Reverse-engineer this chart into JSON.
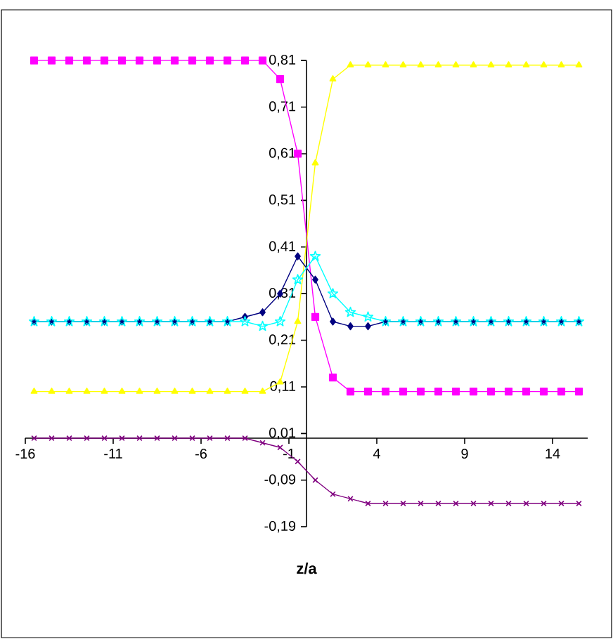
{
  "chart_data": {
    "type": "line",
    "xlabel": "z/a",
    "x": [
      -15.5,
      -14.5,
      -13.5,
      -12.5,
      -11.5,
      -10.5,
      -9.5,
      -8.5,
      -7.5,
      -6.5,
      -5.5,
      -4.5,
      -3.5,
      -2.5,
      -1.5,
      -0.5,
      0.5,
      1.5,
      2.5,
      3.5,
      4.5,
      5.5,
      6.5,
      7.5,
      8.5,
      9.5,
      10.5,
      11.5,
      12.5,
      13.5,
      14.5,
      15.5
    ],
    "series": [
      {
        "color": "#ff00ff",
        "marker": "square",
        "values": [
          0.81,
          0.81,
          0.81,
          0.81,
          0.81,
          0.81,
          0.81,
          0.81,
          0.81,
          0.81,
          0.81,
          0.81,
          0.81,
          0.81,
          0.77,
          0.61,
          0.26,
          0.13,
          0.1,
          0.1,
          0.1,
          0.1,
          0.1,
          0.1,
          0.1,
          0.1,
          0.1,
          0.1,
          0.1,
          0.1,
          0.1,
          0.1
        ]
      },
      {
        "color": "#ffff00",
        "marker": "triangle",
        "values": [
          0.1,
          0.1,
          0.1,
          0.1,
          0.1,
          0.1,
          0.1,
          0.1,
          0.1,
          0.1,
          0.1,
          0.1,
          0.1,
          0.1,
          0.12,
          0.25,
          0.59,
          0.77,
          0.8,
          0.8,
          0.8,
          0.8,
          0.8,
          0.8,
          0.8,
          0.8,
          0.8,
          0.8,
          0.8,
          0.8,
          0.8,
          0.8
        ]
      },
      {
        "color": "#000080",
        "marker": "diamond",
        "values": [
          0.25,
          0.25,
          0.25,
          0.25,
          0.25,
          0.25,
          0.25,
          0.25,
          0.25,
          0.25,
          0.25,
          0.25,
          0.26,
          0.27,
          0.31,
          0.39,
          0.34,
          0.25,
          0.24,
          0.24,
          0.25,
          0.25,
          0.25,
          0.25,
          0.25,
          0.25,
          0.25,
          0.25,
          0.25,
          0.25,
          0.25,
          0.25
        ]
      },
      {
        "color": "#00ffff",
        "marker": "star",
        "values": [
          0.25,
          0.25,
          0.25,
          0.25,
          0.25,
          0.25,
          0.25,
          0.25,
          0.25,
          0.25,
          0.25,
          0.25,
          0.25,
          0.24,
          0.25,
          0.34,
          0.39,
          0.31,
          0.27,
          0.26,
          0.25,
          0.25,
          0.25,
          0.25,
          0.25,
          0.25,
          0.25,
          0.25,
          0.25,
          0.25,
          0.25,
          0.25
        ]
      },
      {
        "color": "#800080",
        "marker": "cross",
        "values": [
          0.0,
          0.0,
          0.0,
          0.0,
          0.0,
          0.0,
          0.0,
          0.0,
          0.0,
          0.0,
          0.0,
          0.0,
          0.0,
          -0.01,
          -0.02,
          -0.05,
          -0.09,
          -0.12,
          -0.13,
          -0.14,
          -0.14,
          -0.14,
          -0.14,
          -0.14,
          -0.14,
          -0.14,
          -0.14,
          -0.14,
          -0.14,
          -0.14,
          -0.14,
          -0.14
        ]
      }
    ],
    "xlim": [
      -16,
      16
    ],
    "ylim": [
      -0.19,
      0.81
    ],
    "xticks": [
      -16,
      -11,
      -6,
      -1,
      4,
      9,
      14
    ],
    "yticks": [
      {
        "value": -0.19,
        "label": "-0,19"
      },
      {
        "value": -0.09,
        "label": "-0,09"
      },
      {
        "value": 0.01,
        "label": "0,01"
      },
      {
        "value": 0.11,
        "label": "0,11"
      },
      {
        "value": 0.21,
        "label": "0,21"
      },
      {
        "value": 0.31,
        "label": "0,31"
      },
      {
        "value": 0.41,
        "label": "0,41"
      },
      {
        "value": 0.51,
        "label": "0,51"
      },
      {
        "value": 0.61,
        "label": "0,61"
      },
      {
        "value": 0.71,
        "label": "0,71"
      },
      {
        "value": 0.81,
        "label": "0,81"
      }
    ]
  }
}
